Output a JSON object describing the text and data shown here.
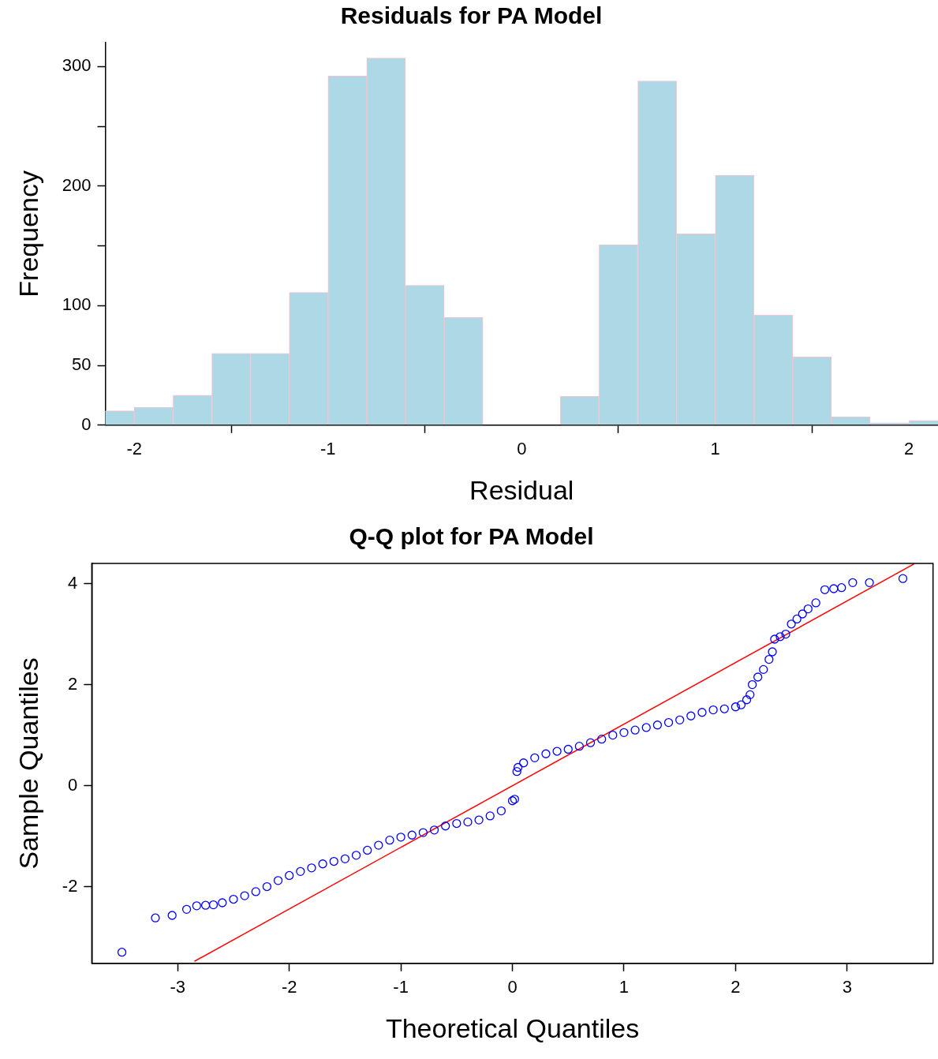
{
  "chart_data": [
    {
      "type": "histogram",
      "title": "Residuals for PA Model",
      "xlabel": "Residual",
      "ylabel": "Frequency",
      "color": "#add8e6",
      "bins": [
        -2.2,
        -2.0,
        -1.8,
        -1.6,
        -1.4,
        -1.2,
        -1.0,
        -0.8,
        -0.6,
        -0.4,
        -0.2,
        0,
        0.2,
        0.4,
        0.6,
        0.8,
        1.0,
        1.2,
        1.4,
        1.6,
        1.8,
        2.0,
        2.2
      ],
      "values": [
        12,
        15,
        25,
        60,
        60,
        111,
        292,
        307,
        117,
        90,
        0,
        0,
        24,
        151,
        288,
        160,
        209,
        92,
        57,
        7,
        2,
        4
      ],
      "xlim": [
        -2.15,
        2.15
      ],
      "xticks": [
        -2,
        -1,
        0,
        1,
        2
      ],
      "ylim": [
        0,
        320
      ],
      "yticks": [
        0,
        50,
        100,
        {
          "value": 150,
          "label": null
        },
        200,
        {
          "value": 250,
          "label": null
        },
        300
      ],
      "grid": false
    },
    {
      "type": "scatter",
      "title": "Q-Q plot for PA Model",
      "xlabel": "Theoretical Quantiles",
      "ylabel": "Sample Quantiles",
      "xlim": [
        -3.77,
        3.77
      ],
      "xticks": [
        -3,
        -2,
        -1,
        0,
        1,
        2,
        3
      ],
      "ylim": [
        -3.52,
        4.4
      ],
      "yticks": [
        -2,
        0,
        2,
        4
      ],
      "grid": false,
      "series": [
        {
          "type": "scatter",
          "color": "#0000ff",
          "marker": "circle",
          "x": [
            -3.5,
            -3.2,
            -3.05,
            -2.92,
            -2.83,
            -2.75,
            -2.68,
            -2.6,
            -2.5,
            -2.4,
            -2.3,
            -2.2,
            -2.1,
            -2.0,
            -1.9,
            -1.8,
            -1.7,
            -1.6,
            -1.5,
            -1.4,
            -1.3,
            -1.2,
            -1.1,
            -1.0,
            -0.9,
            -0.8,
            -0.7,
            -0.6,
            -0.5,
            -0.4,
            -0.3,
            -0.2,
            -0.1,
            0.0,
            0.02,
            0.04,
            0.05,
            0.1,
            0.2,
            0.3,
            0.4,
            0.5,
            0.6,
            0.7,
            0.8,
            0.9,
            1.0,
            1.1,
            1.2,
            1.3,
            1.4,
            1.5,
            1.6,
            1.7,
            1.8,
            1.9,
            2.0,
            2.05,
            2.1,
            2.13,
            2.15,
            2.2,
            2.25,
            2.3,
            2.33,
            2.35,
            2.4,
            2.45,
            2.5,
            2.55,
            2.6,
            2.65,
            2.72,
            2.8,
            2.88,
            2.95,
            3.05,
            3.2,
            3.5
          ],
          "values": [
            -3.3,
            -2.62,
            -2.57,
            -2.45,
            -2.38,
            -2.37,
            -2.36,
            -2.32,
            -2.25,
            -2.18,
            -2.1,
            -2.0,
            -1.88,
            -1.78,
            -1.7,
            -1.63,
            -1.55,
            -1.5,
            -1.45,
            -1.38,
            -1.28,
            -1.18,
            -1.08,
            -1.02,
            -0.98,
            -0.93,
            -0.88,
            -0.8,
            -0.75,
            -0.72,
            -0.68,
            -0.6,
            -0.5,
            -0.3,
            -0.27,
            0.28,
            0.36,
            0.45,
            0.55,
            0.63,
            0.68,
            0.72,
            0.78,
            0.85,
            0.92,
            1.0,
            1.05,
            1.1,
            1.15,
            1.2,
            1.25,
            1.3,
            1.38,
            1.45,
            1.5,
            1.52,
            1.56,
            1.6,
            1.7,
            1.8,
            2.0,
            2.15,
            2.3,
            2.5,
            2.65,
            2.9,
            2.95,
            3.0,
            3.2,
            3.3,
            3.4,
            3.5,
            3.62,
            3.88,
            3.9,
            3.92,
            4.02,
            4.02,
            4.1
          ]
        },
        {
          "type": "line",
          "color": "#ff0000",
          "x": [
            -2.85,
            3.6
          ],
          "values": [
            -3.48,
            4.39
          ]
        }
      ]
    }
  ]
}
